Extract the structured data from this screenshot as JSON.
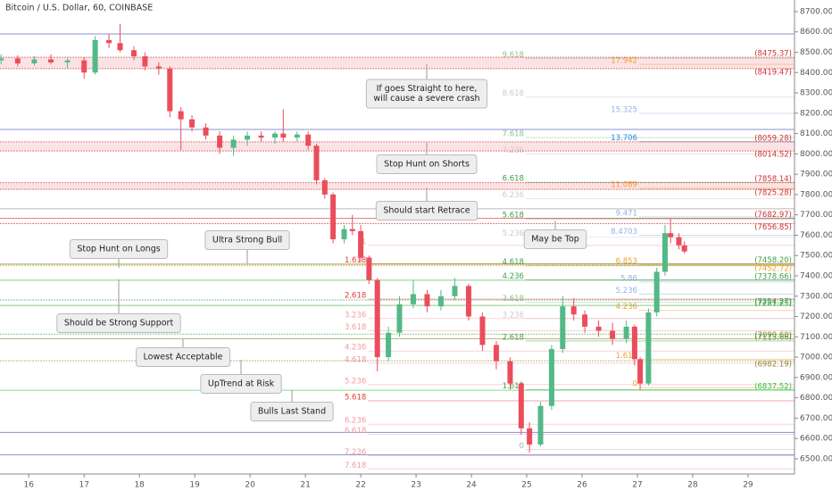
{
  "chart_data": {
    "type": "candlestick",
    "title": "Bitcoin / U.S. Dollar, 60, COINBASE",
    "xlim": [
      15.48,
      29.84
    ],
    "xticks": [
      16,
      17,
      18,
      19,
      20,
      21,
      22,
      23,
      24,
      25,
      26,
      27,
      28,
      29
    ],
    "ylim": [
      6425,
      8757
    ],
    "yticks": [
      {
        "value": 6500,
        "label": "6500.00"
      },
      {
        "value": 6600,
        "label": "6600.00"
      },
      {
        "value": 6700,
        "label": "6700.00"
      },
      {
        "value": 6800,
        "label": "6800.00"
      },
      {
        "value": 6900,
        "label": "6900.00"
      },
      {
        "value": 7000,
        "label": "7000.00"
      },
      {
        "value": 7100,
        "label": "7100.00"
      },
      {
        "value": 7200,
        "label": "7200.00"
      },
      {
        "value": 7300,
        "label": "7300.00"
      },
      {
        "value": 7400,
        "label": "7400.00"
      },
      {
        "value": 7500,
        "label": "7500.00"
      },
      {
        "value": 7600,
        "label": "7600.00"
      },
      {
        "value": 7700,
        "label": "7700.00"
      },
      {
        "value": 7800,
        "label": "7800.00"
      },
      {
        "value": 7900,
        "label": "7900.00"
      },
      {
        "value": 8000,
        "label": "8000.00"
      },
      {
        "value": 8100,
        "label": "8100.00"
      },
      {
        "value": 8200,
        "label": "8200.00"
      },
      {
        "value": 8300,
        "label": "8300.00"
      },
      {
        "value": 8400,
        "label": "8400.00"
      },
      {
        "value": 8500,
        "label": "8500.00"
      },
      {
        "value": 8600,
        "label": "8600.00"
      },
      {
        "value": 8700,
        "label": "8700.00"
      }
    ],
    "up_color": "#53b987",
    "down_color": "#eb4d5c",
    "x": [
      15.5,
      15.8,
      16.1,
      16.4,
      16.7,
      17.0,
      17.2,
      17.45,
      17.65,
      17.9,
      18.1,
      18.35,
      18.55,
      18.75,
      18.95,
      19.2,
      19.45,
      19.7,
      19.95,
      20.2,
      20.45,
      20.6,
      20.85,
      21.05,
      21.2,
      21.35,
      21.5,
      21.7,
      21.85,
      22.0,
      22.15,
      22.3,
      22.5,
      22.7,
      22.95,
      23.2,
      23.45,
      23.7,
      23.95,
      24.2,
      24.45,
      24.7,
      24.9,
      25.05,
      25.25,
      25.45,
      25.65,
      25.85,
      26.05,
      26.3,
      26.55,
      26.8,
      26.95,
      27.05,
      27.2,
      27.35,
      27.5,
      27.6,
      27.75,
      27.85
    ],
    "open": [
      8460,
      8470,
      8445,
      8465,
      8450,
      8460,
      8400,
      8560,
      8545,
      8510,
      8480,
      8430,
      8420,
      8210,
      8170,
      8130,
      8090,
      8030,
      8070,
      8090,
      8080,
      8100,
      8080,
      8095,
      8040,
      7870,
      7800,
      7580,
      7630,
      7620,
      7490,
      7380,
      7000,
      7120,
      7260,
      7310,
      7250,
      7300,
      7350,
      7200,
      7060,
      6980,
      6870,
      6650,
      6570,
      6760,
      7040,
      7250,
      7210,
      7150,
      7130,
      7090,
      7150,
      6990,
      6870,
      7220,
      7420,
      7610,
      7590,
      7550
    ],
    "high": [
      8490,
      8485,
      8480,
      8490,
      8470,
      8475,
      8580,
      8590,
      8640,
      8530,
      8500,
      8450,
      8430,
      8230,
      8190,
      8150,
      8110,
      8090,
      8110,
      8110,
      8110,
      8220,
      8110,
      8110,
      8050,
      7880,
      7810,
      7650,
      7700,
      7650,
      7500,
      7390,
      7150,
      7300,
      7380,
      7330,
      7330,
      7390,
      7360,
      7220,
      7080,
      7000,
      6880,
      6680,
      6780,
      7060,
      7300,
      7290,
      7230,
      7180,
      7170,
      7180,
      7160,
      7000,
      7240,
      7440,
      7650,
      7680,
      7610,
      7570
    ],
    "low": [
      8440,
      8430,
      8435,
      8440,
      8420,
      8370,
      8390,
      8520,
      8500,
      8460,
      8410,
      8390,
      8180,
      8020,
      8110,
      8070,
      8000,
      7990,
      8040,
      8060,
      8050,
      8060,
      8060,
      8020,
      7850,
      7780,
      7560,
      7560,
      7600,
      7470,
      7360,
      6930,
      6980,
      7100,
      7240,
      7220,
      7230,
      7280,
      7180,
      7030,
      6940,
      6840,
      6620,
      6530,
      6560,
      6740,
      7020,
      7180,
      7120,
      7100,
      7060,
      7070,
      6960,
      6840,
      6860,
      7200,
      7400,
      7560,
      7530,
      7510
    ],
    "close": [
      8470,
      8445,
      8465,
      8450,
      8460,
      8400,
      8560,
      8545,
      8510,
      8480,
      8430,
      8420,
      8210,
      8170,
      8130,
      8090,
      8030,
      8070,
      8090,
      8080,
      8100,
      8080,
      8095,
      8040,
      7870,
      7800,
      7580,
      7630,
      7620,
      7490,
      7380,
      7000,
      7120,
      7260,
      7310,
      7250,
      7300,
      7350,
      7200,
      7060,
      6980,
      6870,
      6650,
      6570,
      6760,
      7040,
      7250,
      7210,
      7150,
      7130,
      7090,
      7150,
      6990,
      6870,
      7220,
      7420,
      7610,
      7590,
      7550,
      7520
    ],
    "levels": [
      {
        "value": 8475.37,
        "label": "(8475.37)",
        "color": "#d32f2f",
        "fill": "#fbe3e5"
      },
      {
        "value": 8419.47,
        "label": "(8419.47)",
        "color": "#d32f2f"
      },
      {
        "value": 8059.28,
        "label": "(8059.28)",
        "color": "#d32f2f",
        "fill": "#fbe3e5"
      },
      {
        "value": 8014.52,
        "label": "(8014.52)",
        "color": "#d32f2f"
      },
      {
        "value": 7858.14,
        "label": "(7858.14)",
        "color": "#d32f2f",
        "fill": "#fbe3e5"
      },
      {
        "value": 7825.28,
        "label": "(7825.28)",
        "color": "#d32f2f"
      },
      {
        "value": 7682.97,
        "label": "(7682.97)",
        "color": "#d32f2f"
      },
      {
        "value": 7656.85,
        "label": "(7656.85)",
        "color": "#d32f2f"
      },
      {
        "value": 7458.2,
        "label": "(7458.20)",
        "color": "#43a047"
      },
      {
        "value": 7452.72,
        "label": "(7452.72)",
        "color": "#f0a030"
      },
      {
        "value": 7378.66,
        "label": "(7378.66)",
        "color": "#43a047"
      },
      {
        "value": 7281.25,
        "label": "(7281.25)",
        "color": "#43a047"
      },
      {
        "value": 7254.27,
        "label": "(7254.27)",
        "color": "#43a047"
      },
      {
        "value": 7113.66,
        "label": "(7113.66)",
        "color": "#43a047"
      },
      {
        "value": 7090.6,
        "label": "(7090.60)",
        "color": "#8a8a2a"
      },
      {
        "value": 6982.19,
        "label": "(6982.19)",
        "color": "#8a8a2a"
      },
      {
        "value": 6837.52,
        "label": "(6837.52)",
        "color": "#2ecc40"
      }
    ],
    "lines": [
      {
        "value": 8590,
        "color": "#8c8fd0"
      },
      {
        "value": 8120,
        "color": "#8c8fd0"
      },
      {
        "value": 7730,
        "color": "#bbbbbb"
      },
      {
        "value": 6630,
        "color": "#8c8fd0"
      },
      {
        "value": 6520,
        "color": "#8c8fd0"
      }
    ],
    "fibs": [
      {
        "x": 22.1,
        "color": "#f29aa6",
        "levels": [
          {
            "label": "1",
            "value": 7550
          },
          {
            "label": "1.618",
            "value": 7460,
            "color": "#e53935"
          },
          {
            "label": "2,618",
            "value": 7285,
            "color": "#e53935"
          },
          {
            "label": "3.236",
            "value": 7190
          },
          {
            "label": "3.618",
            "value": 7130
          },
          {
            "label": "4.236",
            "value": 7030
          },
          {
            "label": "4.618",
            "value": 6970
          },
          {
            "label": "5.236",
            "value": 6865
          },
          {
            "label": "5.618",
            "value": 6785,
            "color": "#e53935"
          },
          {
            "label": "6.236",
            "value": 6670
          },
          {
            "label": "6.618",
            "value": 6620
          },
          {
            "label": "7.236",
            "value": 6515
          },
          {
            "label": "7.618",
            "value": 6450
          }
        ]
      },
      {
        "x": 24.95,
        "color": "#8bc48e",
        "levels": [
          {
            "label": "9.618",
            "value": 8470
          },
          {
            "label": "8.618",
            "value": 8280,
            "color": "#cccccc"
          },
          {
            "label": "7.618",
            "value": 8080
          },
          {
            "label": "7.236",
            "value": 8000,
            "color": "#cccccc"
          },
          {
            "label": "6.618",
            "value": 7860,
            "color": "#43a047"
          },
          {
            "label": "6.236",
            "value": 7780,
            "color": "#cccccc"
          },
          {
            "label": "5.618",
            "value": 7680,
            "color": "#43a047"
          },
          {
            "label": "5.236",
            "value": 7590,
            "color": "#cccccc"
          },
          {
            "label": "4.618",
            "value": 7450,
            "color": "#43a047"
          },
          {
            "label": "4.236",
            "value": 7380,
            "color": "#43a047"
          },
          {
            "label": "3.618",
            "value": 7270
          },
          {
            "label": "3.236",
            "value": 7190,
            "color": "#cccccc"
          },
          {
            "label": "2.618",
            "value": 7080,
            "color": "#43a047"
          },
          {
            "label": "1.618",
            "value": 6840,
            "color": "#43a047"
          },
          {
            "label": "0",
            "value": 6545,
            "color": "#aaaaaa"
          }
        ]
      },
      {
        "x": 27.0,
        "color": "#8fb4e8",
        "levels": [
          {
            "label": "17.942",
            "value": 8440,
            "color": "#f0a030"
          },
          {
            "label": "15.325",
            "value": 8200
          },
          {
            "label": "13.706",
            "value": 8060,
            "color": "#1e88e5"
          },
          {
            "label": "11.089",
            "value": 7830,
            "color": "#f0a030"
          },
          {
            "label": "9.471",
            "value": 7690
          },
          {
            "label": "8.4703",
            "value": 7600
          },
          {
            "label": "6.853",
            "value": 7455,
            "color": "#f0a030"
          },
          {
            "label": "5.86",
            "value": 7370
          },
          {
            "label": "5.236",
            "value": 7310
          },
          {
            "label": "4.236",
            "value": 7230,
            "color": "#f0a030"
          },
          {
            "label": "1.618",
            "value": 6990,
            "color": "#f0a030"
          },
          {
            "label": "0",
            "value": 6850,
            "color": "#f0a030"
          }
        ]
      }
    ],
    "annotations": [
      {
        "lines": [
          "If goes Straight to here,",
          "will cause a severe crash"
        ]
      },
      {
        "lines": [
          "Stop Hunt on Shorts"
        ]
      },
      {
        "lines": [
          "Should start Retrace"
        ]
      },
      {
        "lines": [
          "May be Top"
        ]
      },
      {
        "lines": [
          "Ultra Strong Bull"
        ]
      },
      {
        "lines": [
          "Stop Hunt on Longs"
        ]
      },
      {
        "lines": [
          "Should be Strong Support"
        ]
      },
      {
        "lines": [
          "Lowest Acceptable"
        ]
      },
      {
        "lines": [
          "UpTrend at Risk"
        ]
      },
      {
        "lines": [
          "Bulls Last Stand"
        ]
      }
    ]
  }
}
